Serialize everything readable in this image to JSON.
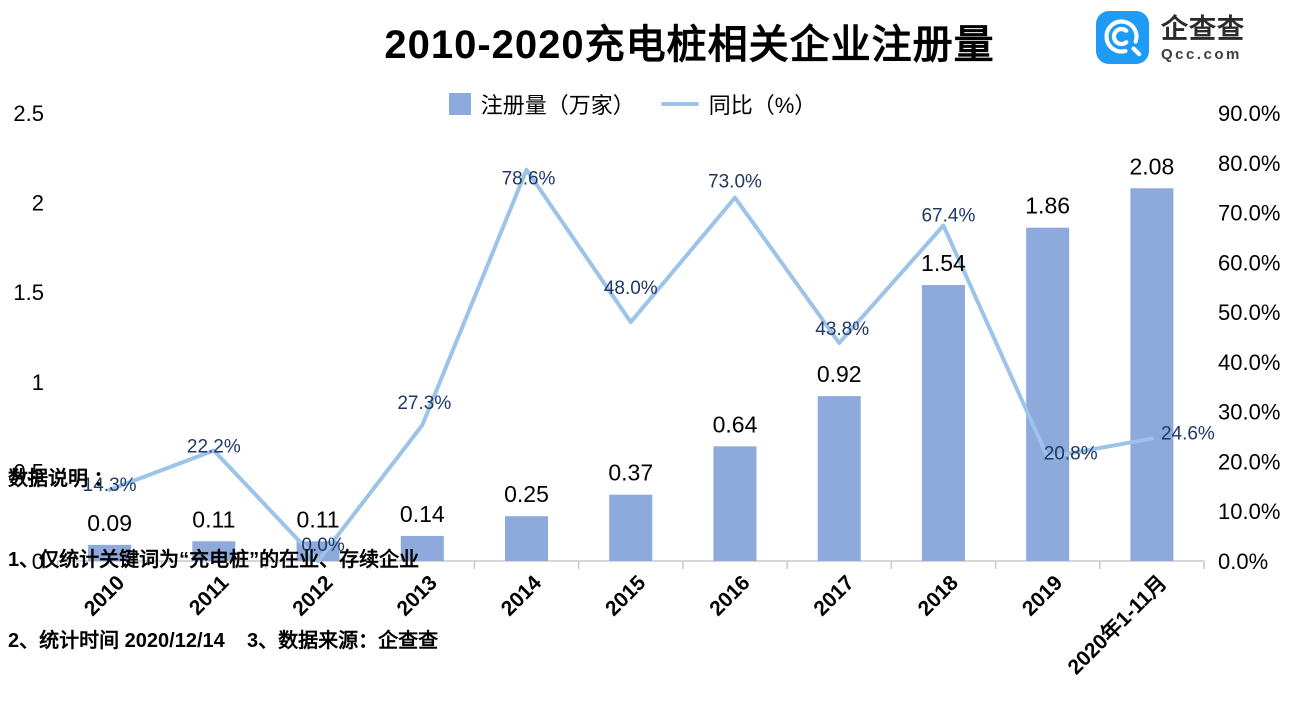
{
  "header": {
    "title": "2010-2020充电桩相关企业注册量",
    "logo": {
      "name": "企查查",
      "domain": "Qcc.com",
      "brand_color": "#1E9BF5"
    }
  },
  "legend": [
    {
      "label": "注册量（万家）",
      "type": "bar",
      "color": "#8EA9DB"
    },
    {
      "label": "同比（%）",
      "type": "line",
      "color": "#9CC3E8"
    }
  ],
  "chart_data": {
    "type": "bar",
    "title": "2010-2020充电桩相关企业注册量",
    "categories": [
      "2010",
      "2011",
      "2012",
      "2013",
      "2014",
      "2015",
      "2016",
      "2017",
      "2018",
      "2019",
      "2020年1-11月"
    ],
    "series": [
      {
        "name": "注册量（万家）",
        "type": "bar",
        "axis": "left",
        "color": "#8EA9DB",
        "values": [
          0.09,
          0.11,
          0.11,
          0.14,
          0.25,
          0.37,
          0.64,
          0.92,
          1.54,
          1.86,
          2.08
        ],
        "labels": [
          "0.09",
          "0.11",
          "0.11",
          "0.14",
          "0.25",
          "0.37",
          "0.64",
          "0.92",
          "1.54",
          "1.86",
          "2.08"
        ],
        "label_color": "#000000"
      },
      {
        "name": "同比（%）",
        "type": "line",
        "axis": "right",
        "color": "#9CC3E8",
        "values": [
          14.3,
          22.2,
          0.0,
          27.3,
          78.6,
          48.0,
          73.0,
          43.8,
          67.4,
          20.8,
          24.6
        ],
        "labels": [
          "14.3%",
          "22.2%",
          "0.0%",
          "27.3%",
          "78.6%",
          "48.0%",
          "73.0%",
          "43.8%",
          "67.4%",
          "20.8%",
          "24.6%"
        ],
        "label_color": "#1F3864"
      }
    ],
    "left_axis": {
      "min": 0,
      "max": 2.5,
      "ticks": [
        "0",
        "0.5",
        "1",
        "1.5",
        "2",
        "2.5"
      ]
    },
    "right_axis": {
      "min": 0,
      "max": 90,
      "ticks": [
        "0.0%",
        "10.0%",
        "20.0%",
        "30.0%",
        "40.0%",
        "50.0%",
        "60.0%",
        "70.0%",
        "80.0%",
        "90.0%"
      ]
    },
    "grid": false,
    "legend_position": "top",
    "axis_line_color": "#C9C9C9",
    "axis_text_color": "#000000"
  },
  "footnotes": {
    "lines": [
      "数据说明 ：",
      "1、仅统计关键词为“充电桩”的在业、存续企业",
      "2、统计时间 2020/12/14    3、数据来源：企查查"
    ]
  }
}
